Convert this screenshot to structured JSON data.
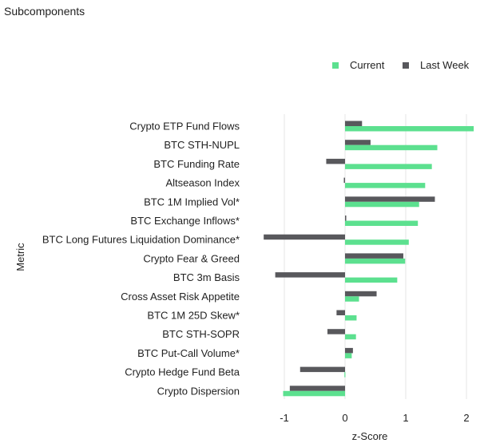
{
  "header": {
    "title": "Subcomponents"
  },
  "colors": {
    "current": "#5ce08f",
    "last_week": "#58585c",
    "grid": "#e4e4e4"
  },
  "chart_data": {
    "type": "bar",
    "orientation": "horizontal",
    "title": "Subcomponents",
    "xlabel": "z-Score",
    "ylabel": "Metric",
    "xlim": [
      -1.45,
      2.2
    ],
    "xticks": [
      -1,
      0,
      1,
      2
    ],
    "grid": "vertical",
    "legend_position": "top-right",
    "categories": [
      "Crypto ETP Fund Flows",
      "BTC STH-NUPL",
      "BTC Funding Rate",
      "Altseason Index",
      "BTC 1M Implied Vol*",
      "BTC Exchange Inflows*",
      "BTC Long Futures Liquidation Dominance*",
      "Crypto Fear & Greed",
      "BTC 3m Basis",
      "Cross Asset Risk Appetite",
      "BTC 1M 25D Skew*",
      "BTC STH-SOPR",
      "BTC Put-Call Volume*",
      "Crypto Hedge Fund Beta",
      "Crypto Dispersion"
    ],
    "series": [
      {
        "name": "Current",
        "values": [
          2.12,
          1.52,
          1.43,
          1.32,
          1.22,
          1.2,
          1.05,
          0.99,
          0.86,
          0.23,
          0.19,
          0.18,
          0.11,
          -0.01,
          -1.02
        ]
      },
      {
        "name": "Last Week",
        "values": [
          0.28,
          0.42,
          -0.31,
          -0.02,
          1.48,
          0.02,
          -1.34,
          0.96,
          -1.15,
          0.52,
          -0.14,
          -0.29,
          0.13,
          -0.74,
          -0.91
        ]
      }
    ]
  }
}
